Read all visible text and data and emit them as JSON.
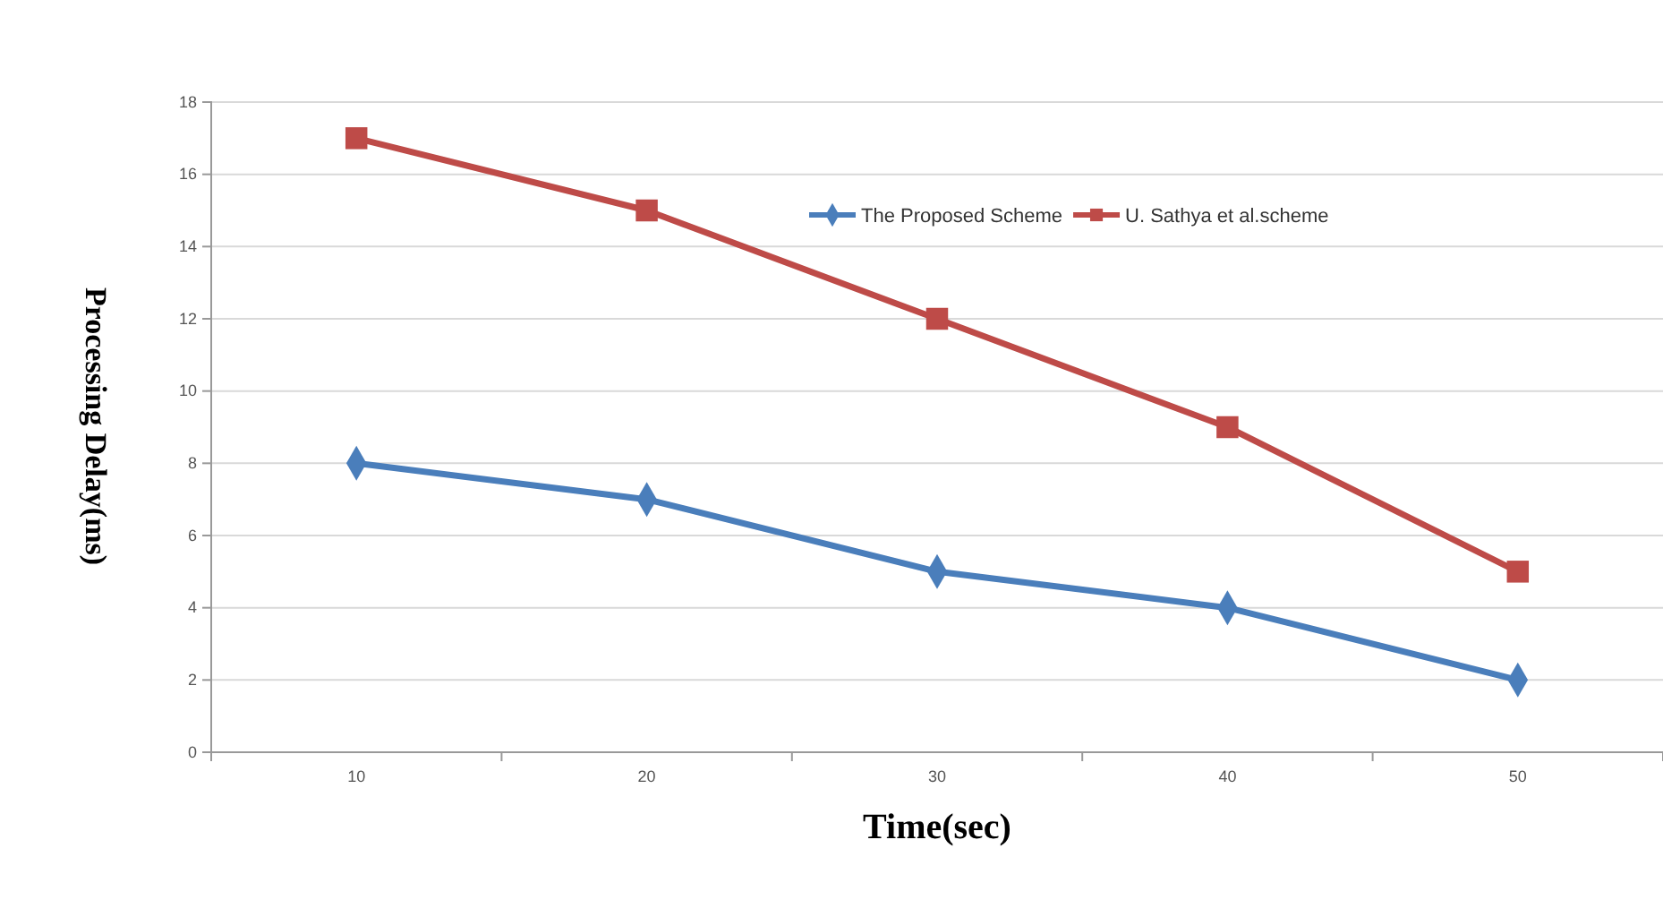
{
  "chart_data": {
    "type": "line",
    "xlabel": "Time(sec)",
    "ylabel": "Processing Delay(ms)",
    "categories": [
      "10",
      "20",
      "30",
      "40",
      "50"
    ],
    "series": [
      {
        "name": "The Proposed Scheme",
        "color": "#4a7ebb",
        "values": [
          8,
          7,
          5,
          4,
          2
        ],
        "marker": "diamond"
      },
      {
        "name": "U. Sathya et al.scheme",
        "color": "#be4b48",
        "values": [
          17,
          15,
          12,
          9,
          5
        ],
        "marker": "square"
      }
    ],
    "ylim": [
      0,
      18
    ],
    "yticks": [
      0,
      2,
      4,
      6,
      8,
      10,
      12,
      14,
      16,
      18
    ],
    "grid": "y",
    "legend": "top right"
  }
}
